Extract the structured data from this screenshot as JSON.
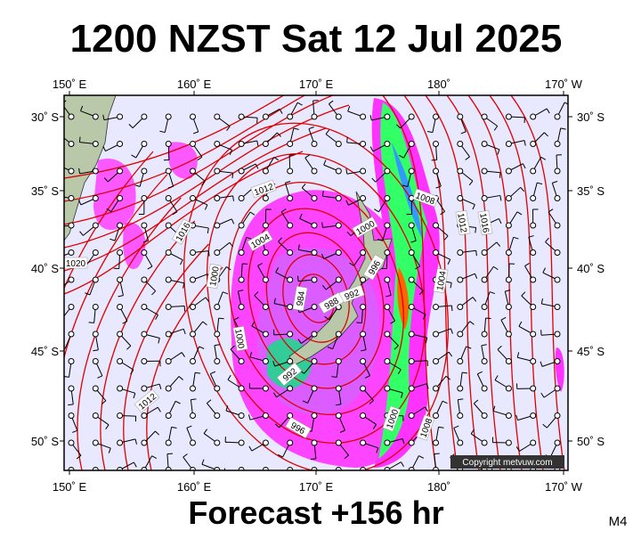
{
  "header": {
    "title": "1200 NZST Sat 12 Jul 2025"
  },
  "footer": {
    "forecast": "Forecast +156 hr",
    "model": "M4"
  },
  "map": {
    "lon_labels": [
      "150˚ E",
      "160˚ E",
      "170˚ E",
      "180˚",
      "170˚ W"
    ],
    "lat_labels": [
      "30˚ S",
      "35˚ S",
      "40˚ S",
      "45˚ S",
      "50˚ S"
    ],
    "copyright": "Copyright metvuw.com",
    "isobar_labels": [
      1012,
      1016,
      1020,
      1004,
      1000,
      1000,
      996,
      992,
      988,
      984,
      1008,
      1012,
      1016,
      1004,
      1000,
      992,
      996,
      1000,
      1008,
      1012
    ]
  }
}
